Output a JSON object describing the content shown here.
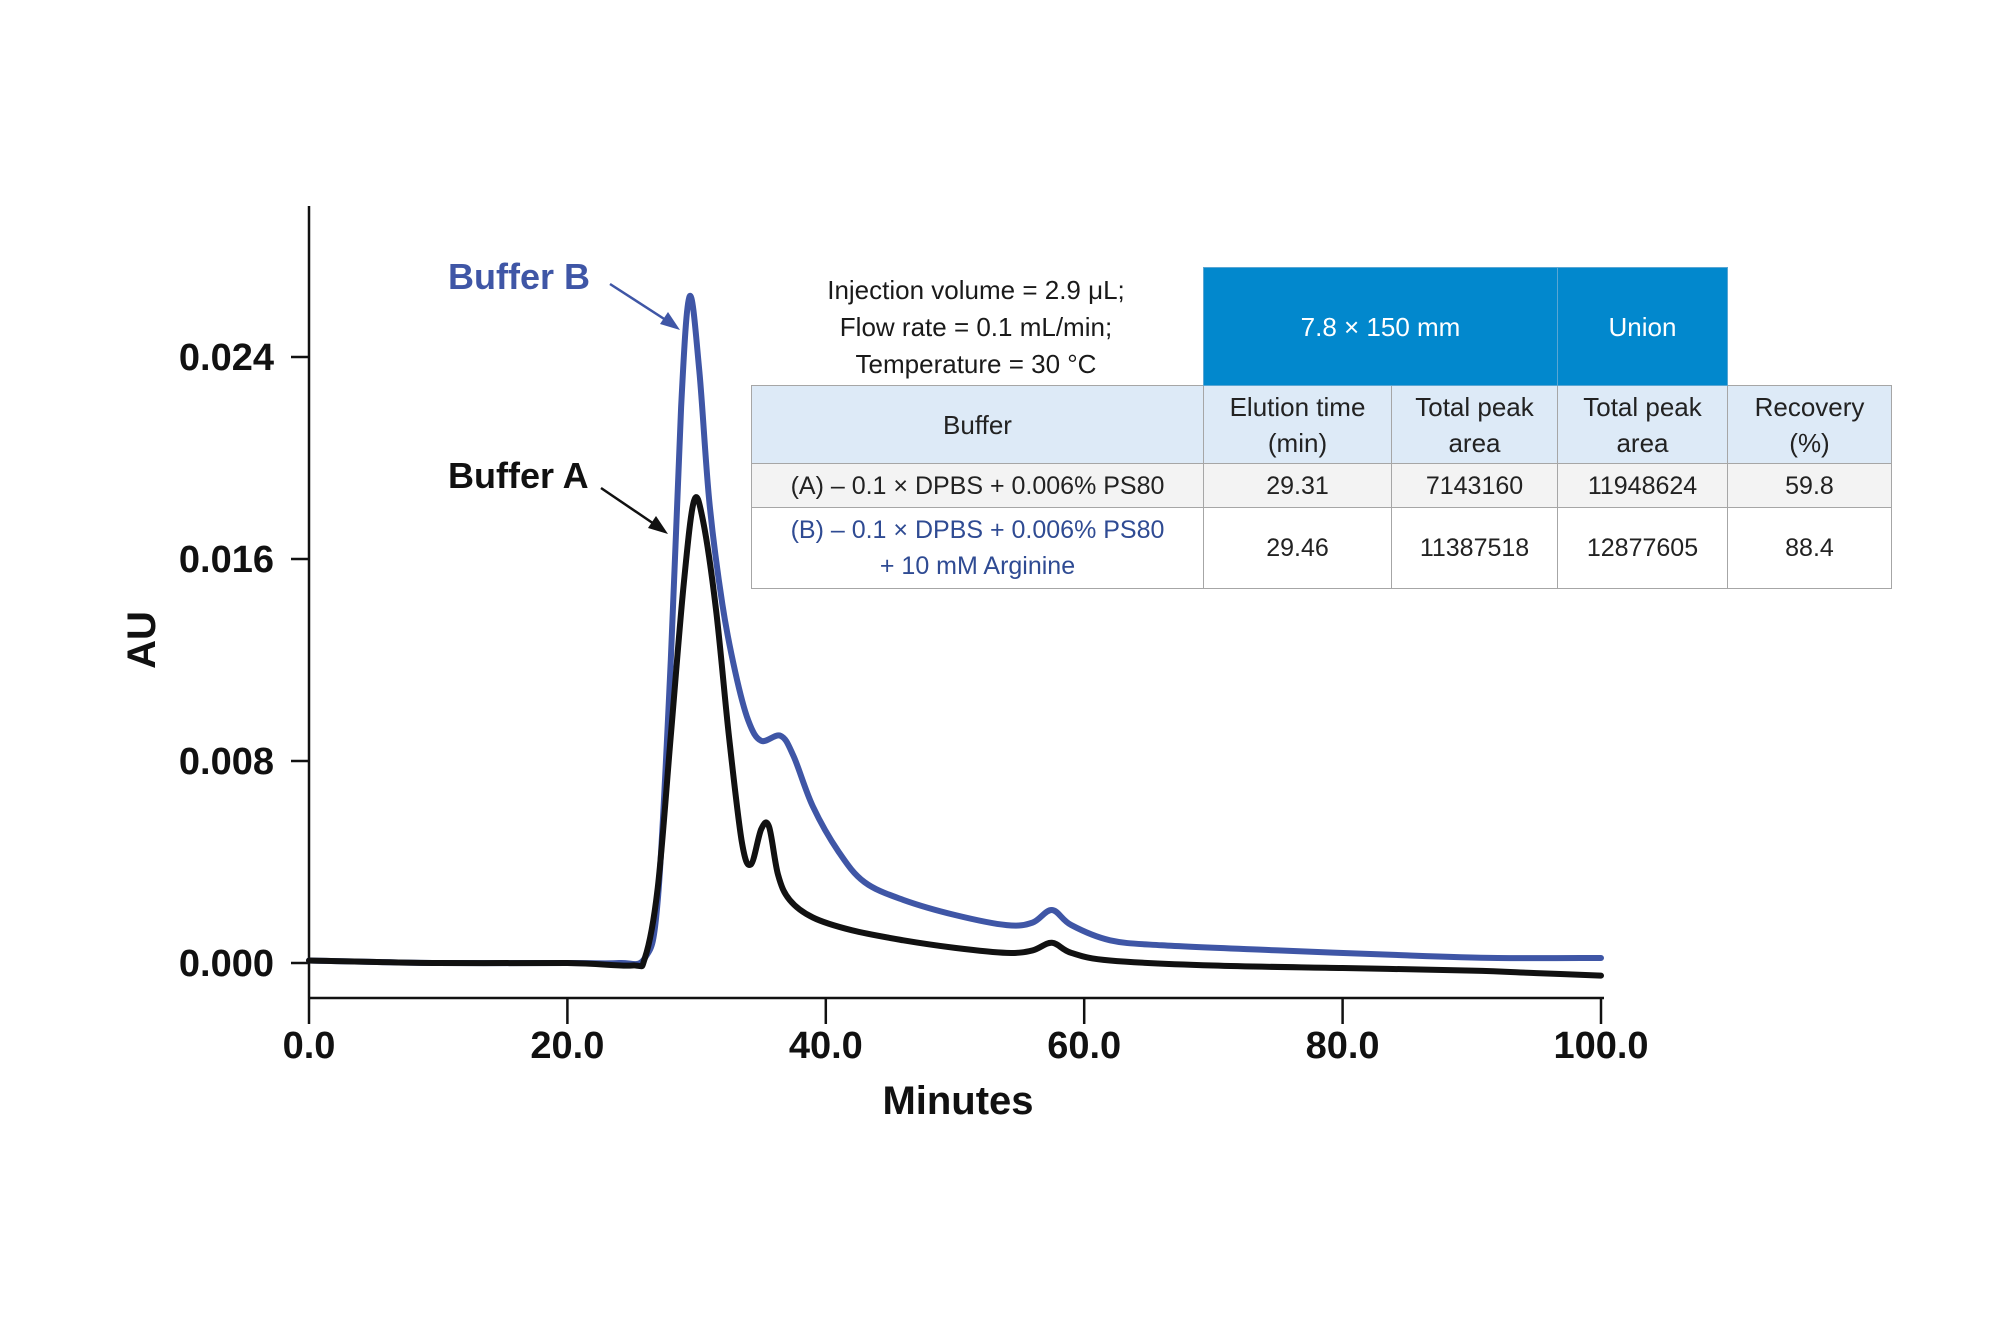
{
  "chart_data": {
    "type": "line",
    "xlabel": "Minutes",
    "ylabel": "AU",
    "xlim": [
      0,
      100
    ],
    "ylim": [
      -0.0015,
      0.0305
    ],
    "x_ticks": [
      "0.0",
      "20.0",
      "40.0",
      "60.0",
      "80.0",
      "100.0"
    ],
    "y_ticks": [
      "0.000",
      "0.008",
      "0.016",
      "0.024"
    ],
    "series": [
      {
        "name": "Buffer B",
        "color": "#3f56a6",
        "points": [
          [
            0,
            0.0001
          ],
          [
            10,
            0.0
          ],
          [
            20,
            0.0
          ],
          [
            24,
            0.0
          ],
          [
            26,
            0.0002
          ],
          [
            27,
            0.0025
          ],
          [
            28,
            0.012
          ],
          [
            28.8,
            0.022
          ],
          [
            29.46,
            0.0264
          ],
          [
            30.2,
            0.0235
          ],
          [
            31,
            0.0182
          ],
          [
            32,
            0.0142
          ],
          [
            33,
            0.0115
          ],
          [
            34,
            0.0096
          ],
          [
            35,
            0.0088
          ],
          [
            36.5,
            0.009
          ],
          [
            37.5,
            0.0082
          ],
          [
            39,
            0.0062
          ],
          [
            41,
            0.0044
          ],
          [
            43,
            0.0032
          ],
          [
            46,
            0.0025
          ],
          [
            50,
            0.0019
          ],
          [
            54,
            0.0015
          ],
          [
            56,
            0.0016
          ],
          [
            57.5,
            0.0021
          ],
          [
            59,
            0.0015
          ],
          [
            62,
            0.0009
          ],
          [
            66,
            0.0007
          ],
          [
            75,
            0.0005
          ],
          [
            85,
            0.0003
          ],
          [
            92,
            0.0002
          ],
          [
            100,
            0.0002
          ]
        ]
      },
      {
        "name": "Buffer A",
        "color": "#111111",
        "points": [
          [
            0,
            0.0001
          ],
          [
            10,
            0.0
          ],
          [
            20,
            0.0
          ],
          [
            25,
            -0.0001
          ],
          [
            26,
            0.0002
          ],
          [
            27,
            0.003
          ],
          [
            28,
            0.009
          ],
          [
            29,
            0.015
          ],
          [
            29.8,
            0.0183
          ],
          [
            30.5,
            0.0175
          ],
          [
            31.5,
            0.014
          ],
          [
            32.5,
            0.009
          ],
          [
            33.5,
            0.0048
          ],
          [
            34.2,
            0.0039
          ],
          [
            35,
            0.0053
          ],
          [
            35.6,
            0.0054
          ],
          [
            36.3,
            0.0035
          ],
          [
            37.2,
            0.0025
          ],
          [
            39,
            0.0018
          ],
          [
            42,
            0.0013
          ],
          [
            46,
            0.0009
          ],
          [
            50,
            0.0006
          ],
          [
            54,
            0.0004
          ],
          [
            56,
            0.0005
          ],
          [
            57.5,
            0.0008
          ],
          [
            59,
            0.0004
          ],
          [
            62,
            0.0001
          ],
          [
            70,
            -0.0001
          ],
          [
            80,
            -0.0002
          ],
          [
            90,
            -0.0003
          ],
          [
            95,
            -0.0004
          ],
          [
            100,
            -0.0005
          ]
        ]
      }
    ],
    "series_labels": [
      "Buffer B",
      "Buffer A"
    ]
  },
  "conditions": {
    "line1": "Injection volume = 2.9 μL;",
    "line2": "Flow rate = 0.1 mL/min;",
    "line3": "Temperature = 30 °C"
  },
  "table": {
    "band_column": "7.8 × 150 mm",
    "band_union": "Union",
    "headers": {
      "buffer": "Buffer",
      "elution_1": "Elution time",
      "elution_2": "(min)",
      "area_1": "Total peak",
      "area_2": "area",
      "union_area_1": "Total peak",
      "union_area_2": "area",
      "recovery_1": "Recovery",
      "recovery_2": "(%)"
    },
    "rows": [
      {
        "buffer_line1": "(A) – 0.1 × DPBS + 0.006% PS80",
        "buffer_line2": "",
        "elution_time": "29.31",
        "total_peak_area": "7143160",
        "union_peak_area": "11948624",
        "recovery": "59.8"
      },
      {
        "buffer_line1": "(B) – 0.1 × DPBS + 0.006% PS80",
        "buffer_line2": "+ 10 mM Arginine",
        "elution_time": "29.46",
        "total_peak_area": "11387518",
        "union_peak_area": "12877605",
        "recovery": "88.4"
      }
    ]
  },
  "colors": {
    "buffer_b": "#3f56a6",
    "buffer_a": "#111111",
    "band": "#0288cd",
    "header": "#ddeaf7"
  }
}
